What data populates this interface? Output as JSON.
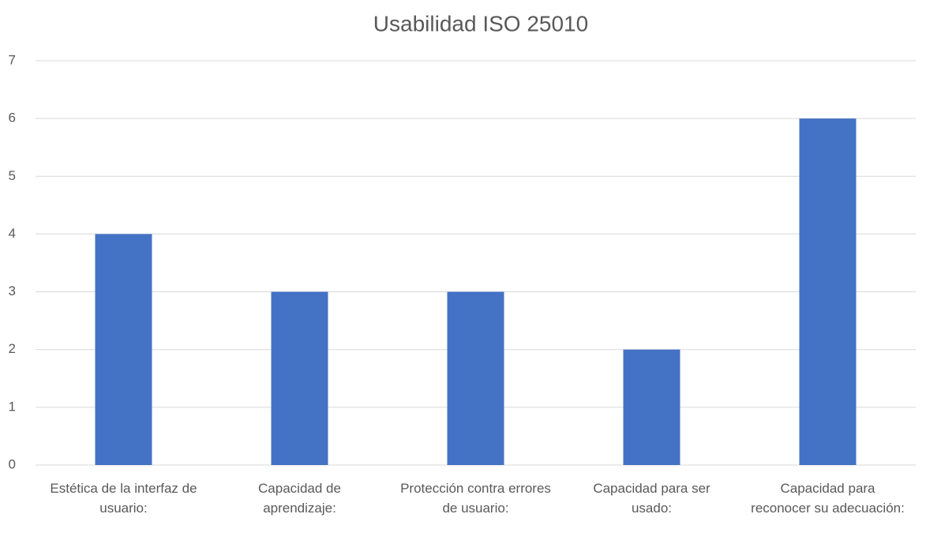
{
  "chart_data": {
    "type": "bar",
    "title": "Usabilidad ISO 25010",
    "categories": [
      "Estética de la interfaz de usuario:",
      "Capacidad de aprendizaje:",
      "Protección contra errores de usuario:",
      "Capacidad para ser usado:",
      "Capacidad para reconocer su adecuación:"
    ],
    "values": [
      4,
      3,
      3,
      2,
      6
    ],
    "color": "#4472c4",
    "ylim": [
      0,
      7
    ],
    "yticks": [
      0,
      1,
      2,
      3,
      4,
      5,
      6,
      7
    ],
    "grid": true
  }
}
